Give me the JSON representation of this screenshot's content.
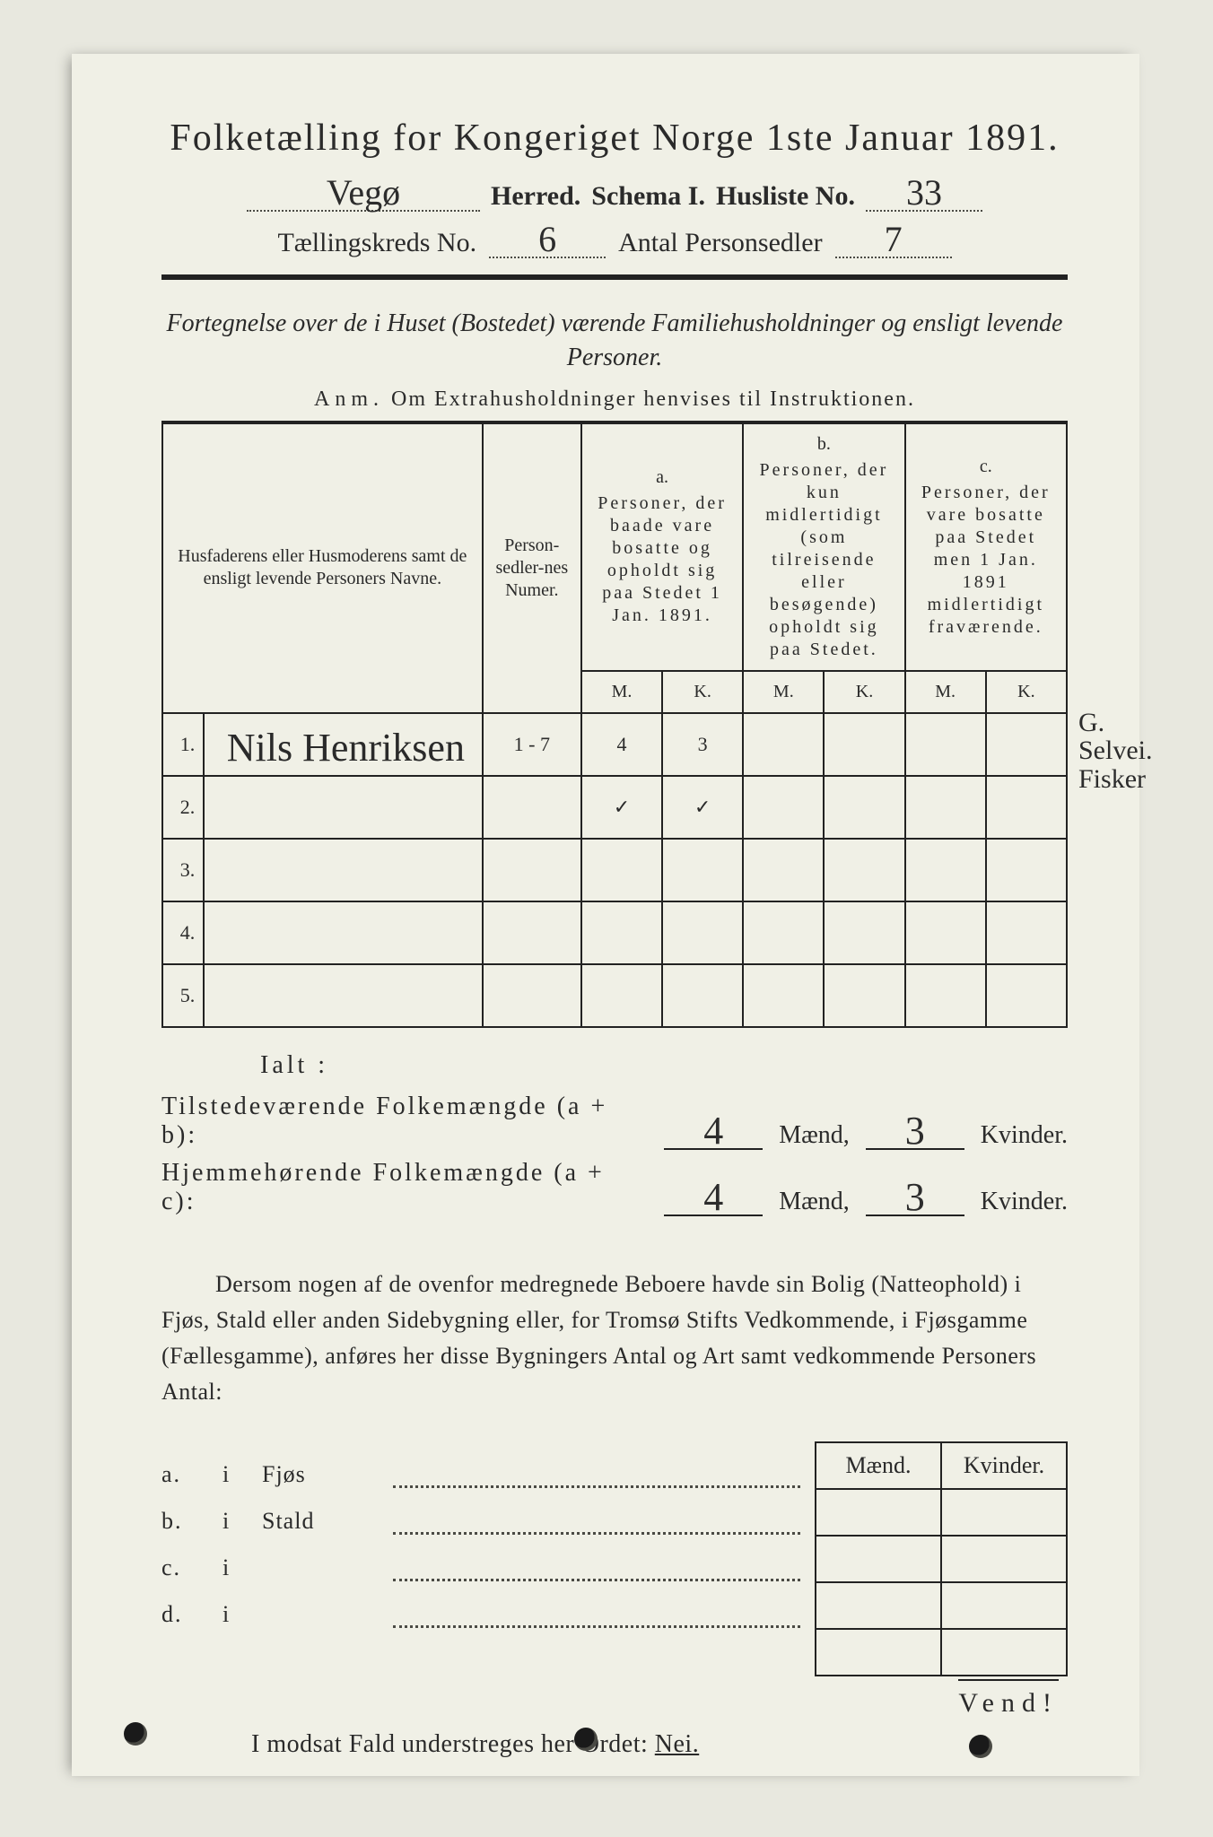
{
  "colors": {
    "page_bg": "#f0f0e6",
    "backdrop": "#e8e8df",
    "ink": "#2a2a2a",
    "rule": "#222222",
    "dotline": "#4a4a44",
    "handwriting": "#2c2c2c"
  },
  "title": "Folketælling for Kongeriget Norge 1ste Januar 1891.",
  "header": {
    "herred_value": "Vegø",
    "herred_label": "Herred.",
    "schema_label": "Schema I.",
    "husliste_label": "Husliste No.",
    "husliste_value": "33",
    "kreds_label": "Tællingskreds No.",
    "kreds_value": "6",
    "personsedler_label": "Antal Personsedler",
    "personsedler_value": "7"
  },
  "subtitle": "Fortegnelse over de i Huset (Bostedet) værende Familiehusholdninger og ensligt levende Personer.",
  "anm_label": "Anm.",
  "anm_text": "Om Extrahusholdninger henvises til Instruktionen.",
  "table": {
    "col_name": "Husfaderens eller Husmoderens samt de ensligt levende Personers Navne.",
    "col_num": "Person-sedler-nes Numer.",
    "col_a_letter": "a.",
    "col_a": "Personer, der baade vare bosatte og opholdt sig paa Stedet 1 Jan. 1891.",
    "col_b_letter": "b.",
    "col_b": "Personer, der kun midlertidigt (som tilreisende eller besøgende) opholdt sig paa Stedet.",
    "col_c_letter": "c.",
    "col_c": "Personer, der vare bosatte paa Stedet men 1 Jan. 1891 midlertidigt fraværende.",
    "mk_m": "M.",
    "mk_k": "K.",
    "rows": [
      {
        "n": "1.",
        "name": "Nils Henriksen",
        "num": "1 - 7",
        "a_m": "4",
        "a_k": "3",
        "b_m": "",
        "b_k": "",
        "c_m": "",
        "c_k": "",
        "margin": "G. Selvei.\nFisker"
      },
      {
        "n": "2.",
        "name": "",
        "num": "",
        "a_m": "✓",
        "a_k": "✓",
        "b_m": "",
        "b_k": "",
        "c_m": "",
        "c_k": "",
        "margin": ""
      },
      {
        "n": "3.",
        "name": "",
        "num": "",
        "a_m": "",
        "a_k": "",
        "b_m": "",
        "b_k": "",
        "c_m": "",
        "c_k": "",
        "margin": ""
      },
      {
        "n": "4.",
        "name": "",
        "num": "",
        "a_m": "",
        "a_k": "",
        "b_m": "",
        "b_k": "",
        "c_m": "",
        "c_k": "",
        "margin": ""
      },
      {
        "n": "5.",
        "name": "",
        "num": "",
        "a_m": "",
        "a_k": "",
        "b_m": "",
        "b_k": "",
        "c_m": "",
        "c_k": "",
        "margin": ""
      }
    ]
  },
  "totals": {
    "ialt": "Ialt :",
    "row1_label": "Tilstedeværende Folkemængde (a + b):",
    "row2_label": "Hjemmehørende Folkemængde (a + c):",
    "maend": "Mænd,",
    "kvinder": "Kvinder.",
    "r1_m": "4",
    "r1_k": "3",
    "r2_m": "4",
    "r2_k": "3"
  },
  "paragraph": "Dersom nogen af de ovenfor medregnede Beboere havde sin Bolig (Natteophold) i Fjøs, Stald eller anden Sidebygning eller, for Tromsø Stifts Vedkommende, i Fjøsgamme (Fællesgamme), anføres her disse Bygningers Antal og Art samt vedkommende Personers Antal:",
  "bottom": {
    "mk_m": "Mænd.",
    "mk_k": "Kvinder.",
    "rows": [
      {
        "l": "a.",
        "i": "i",
        "name": "Fjøs"
      },
      {
        "l": "b.",
        "i": "i",
        "name": "Stald"
      },
      {
        "l": "c.",
        "i": "i",
        "name": ""
      },
      {
        "l": "d.",
        "i": "i",
        "name": ""
      }
    ]
  },
  "nei_line_pre": "I modsat Fald understreges her Ordet: ",
  "nei_word": "Nei.",
  "vend": "Vend!"
}
